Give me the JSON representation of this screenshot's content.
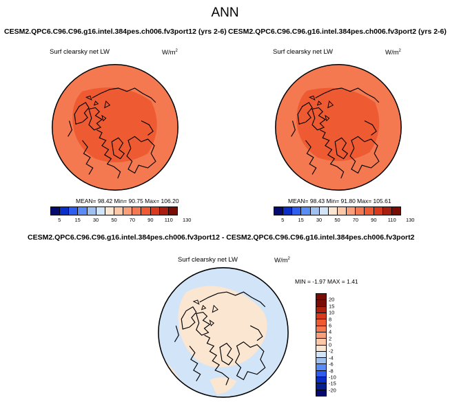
{
  "title": "ANN",
  "panels": [
    {
      "case_title": "CESM2.QPC6.C96.C96.g16.intel.384pes.ch006.fv3port12 (yrs 2-6)",
      "variable": "Surf clearsky net LW",
      "units_base": "W/m",
      "units_exp": "2",
      "stats": "MEAN=  98.42  Min=  90.75  Max= 106.20"
    },
    {
      "case_title": "CESM2.QPC6.C96.C96.g16.intel.384pes.ch006.fv3port2 (yrs 2-6)",
      "variable": "Surf clearsky net LW",
      "units_base": "W/m",
      "units_exp": "2",
      "stats": "MEAN=  98.43  Min=  91.80  Max= 105.61"
    }
  ],
  "diff_panel": {
    "case_title": "CESM2.QPC6.C96.C96.g16.intel.384pes.ch006.fv3port12 - CESM2.QPC6.C96.C96.g16.intel.384pes.ch006.fv3port2",
    "variable": "Surf clearsky net LW",
    "units_base": "W/m",
    "units_exp": "2",
    "stats": "MIN = -1.97 MAX =  1.41"
  },
  "colorbar_main": {
    "labels": [
      "5",
      "15",
      "30",
      "50",
      "70",
      "90",
      "110",
      "130"
    ],
    "colors": [
      "#040a6e",
      "#0a2fc8",
      "#2e5ef0",
      "#5a8cf5",
      "#a0c0f0",
      "#d2e4f8",
      "#fbe6d2",
      "#fcc8a8",
      "#f9a07a",
      "#f47850",
      "#ee5a32",
      "#d93a1e",
      "#a81e10",
      "#7a0c06"
    ]
  },
  "colorbar_diff": {
    "labels": [
      "20",
      "15",
      "10",
      "8",
      "6",
      "4",
      "2",
      "0",
      "-2",
      "-4",
      "-6",
      "-8",
      "-10",
      "-15",
      "-20"
    ],
    "colors": [
      "#7a0c06",
      "#b0200f",
      "#d93a1e",
      "#ee5a32",
      "#f47850",
      "#f9a07a",
      "#fcc8a8",
      "#fbe6d2",
      "#d2e4f8",
      "#a0c0f0",
      "#5a8cf5",
      "#2e5ef0",
      "#0a2fc8",
      "#06218f",
      "#040a6e"
    ]
  },
  "chart_data": [
    {
      "type": "heatmap",
      "title": "CESM2.QPC6.C96.C96.g16.intel.384pes.ch006.fv3port12 (yrs 2-6)",
      "variable": "Surf clearsky net LW",
      "units": "W/m2",
      "projection": "north polar stereographic",
      "mean": 98.42,
      "min": 90.75,
      "max": 106.2,
      "contour_levels": [
        5,
        15,
        30,
        50,
        70,
        90,
        110,
        130
      ],
      "regions": [
        {
          "band": "90-100 W/m2",
          "color": "#ee5a32",
          "location": "central Arctic"
        },
        {
          "band": "100-110 W/m2",
          "color": "#f47850",
          "location": "mid-latitudes"
        }
      ]
    },
    {
      "type": "heatmap",
      "title": "CESM2.QPC6.C96.C96.g16.intel.384pes.ch006.fv3port2 (yrs 2-6)",
      "variable": "Surf clearsky net LW",
      "units": "W/m2",
      "projection": "north polar stereographic",
      "mean": 98.43,
      "min": 91.8,
      "max": 105.61,
      "contour_levels": [
        5,
        15,
        30,
        50,
        70,
        90,
        110,
        130
      ],
      "regions": [
        {
          "band": "90-100 W/m2",
          "color": "#ee5a32",
          "location": "central Arctic"
        },
        {
          "band": "100-110 W/m2",
          "color": "#f47850",
          "location": "mid-latitudes"
        }
      ]
    },
    {
      "type": "heatmap",
      "title": "CESM2.QPC6.C96.C96.g16.intel.384pes.ch006.fv3port12 - CESM2.QPC6.C96.C96.g16.intel.384pes.ch006.fv3port2",
      "variable": "Surf clearsky net LW",
      "units": "W/m2",
      "projection": "north polar stereographic",
      "min": -1.97,
      "max": 1.41,
      "contour_levels": [
        -20,
        -15,
        -10,
        -8,
        -6,
        -4,
        -2,
        0,
        2,
        4,
        6,
        8,
        10,
        15,
        20
      ],
      "regions": [
        {
          "band": "0-2 W/m2",
          "color": "#fbe6d2",
          "location": "central Arctic and scattered"
        },
        {
          "band": "-2-0 W/m2",
          "color": "#d2e4f8",
          "location": "outer ring"
        }
      ]
    }
  ]
}
